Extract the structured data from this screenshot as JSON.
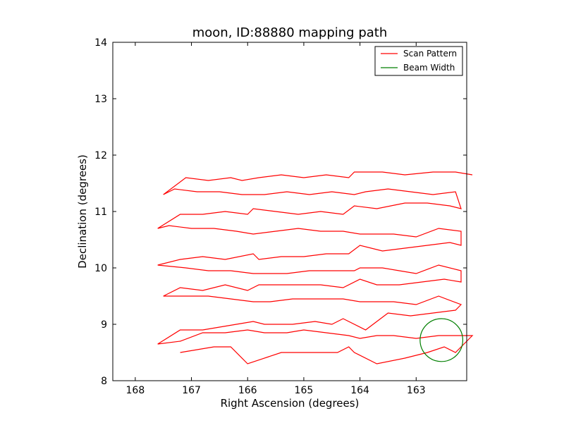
{
  "chart_data": {
    "type": "line",
    "title": "moon, ID:88880 mapping path",
    "xlabel": "Right Ascension (degrees)",
    "ylabel": "Declination (degrees)",
    "xlim": [
      168.4,
      162.1
    ],
    "ylim": [
      8,
      14
    ],
    "x_inverted": true,
    "xticks": [
      168,
      167,
      166,
      165,
      164,
      163
    ],
    "yticks": [
      8,
      9,
      10,
      11,
      12,
      13,
      14
    ],
    "grid": false,
    "legend_location": "top-right",
    "series": [
      {
        "name": "Scan Pattern",
        "color": "#ff0000",
        "x": [
          167.2,
          166.6,
          166.3,
          166.0,
          165.4,
          164.9,
          164.4,
          164.2,
          164.1,
          163.7,
          163.2,
          162.8,
          162.5,
          162.3,
          162.0,
          162.6,
          163.0,
          163.4,
          163.7,
          164.0,
          164.2,
          164.6,
          165.0,
          165.3,
          165.7,
          166.0,
          166.4,
          166.8,
          167.2,
          167.6,
          167.2,
          166.8,
          166.5,
          166.2,
          165.9,
          165.7,
          165.2,
          164.8,
          164.5,
          164.3,
          163.9,
          163.5,
          163.1,
          162.7,
          162.3,
          162.2,
          162.6,
          163.0,
          163.4,
          163.6,
          164.0,
          164.3,
          164.6,
          164.9,
          165.2,
          165.6,
          165.9,
          166.3,
          166.7,
          167.1,
          167.5,
          167.2,
          166.8,
          166.4,
          166.0,
          165.8,
          165.5,
          165.1,
          164.7,
          164.3,
          164.0,
          163.7,
          163.3,
          162.9,
          162.5,
          162.2,
          162.2,
          162.6,
          163.0,
          163.3,
          163.6,
          164.0,
          164.1,
          164.5,
          164.9,
          165.3,
          165.7,
          165.9,
          166.3,
          166.7,
          167.1,
          167.6,
          167.2,
          166.8,
          166.4,
          165.9,
          165.8,
          165.4,
          165.0,
          164.6,
          164.2,
          164.0,
          163.6,
          163.2,
          162.8,
          162.4,
          162.2,
          162.2,
          162.6,
          163.0,
          163.4,
          163.8,
          164.0,
          164.3,
          164.7,
          165.1,
          165.5,
          165.9,
          166.2,
          166.6,
          167.0,
          167.4,
          167.6,
          167.2,
          166.8,
          166.4,
          166.0,
          165.9,
          165.5,
          165.1,
          164.7,
          164.3,
          164.1,
          163.7,
          163.2,
          162.8,
          162.4,
          162.2,
          162.3,
          162.7,
          163.1,
          163.5,
          163.9,
          164.1,
          164.5,
          164.9,
          165.3,
          165.7,
          166.1,
          166.5,
          166.9,
          167.3,
          167.5,
          167.1,
          166.7,
          166.3,
          166.1,
          165.8,
          165.4,
          165.0,
          164.6,
          164.2,
          164.1,
          163.6,
          163.2,
          162.7,
          162.3,
          162.0
        ],
        "y": [
          8.5,
          8.6,
          8.6,
          8.3,
          8.5,
          8.5,
          8.5,
          8.6,
          8.5,
          8.3,
          8.4,
          8.5,
          8.6,
          8.5,
          8.8,
          8.8,
          8.75,
          8.8,
          8.8,
          8.75,
          8.8,
          8.85,
          8.9,
          8.85,
          8.85,
          8.9,
          8.85,
          8.85,
          8.7,
          8.65,
          8.9,
          8.9,
          8.95,
          9.0,
          9.05,
          9.0,
          9.0,
          9.05,
          9.0,
          9.1,
          8.9,
          9.2,
          9.15,
          9.2,
          9.25,
          9.35,
          9.5,
          9.35,
          9.4,
          9.4,
          9.4,
          9.45,
          9.45,
          9.45,
          9.45,
          9.4,
          9.4,
          9.45,
          9.5,
          9.5,
          9.5,
          9.65,
          9.6,
          9.7,
          9.6,
          9.7,
          9.7,
          9.7,
          9.7,
          9.65,
          9.8,
          9.7,
          9.7,
          9.75,
          9.8,
          9.75,
          9.95,
          10.05,
          9.9,
          9.95,
          10.0,
          10.0,
          9.95,
          9.95,
          9.95,
          9.9,
          9.9,
          9.9,
          9.95,
          9.95,
          10.0,
          10.05,
          10.15,
          10.2,
          10.15,
          10.25,
          10.15,
          10.2,
          10.2,
          10.25,
          10.25,
          10.4,
          10.3,
          10.35,
          10.4,
          10.45,
          10.4,
          10.65,
          10.7,
          10.55,
          10.6,
          10.6,
          10.6,
          10.65,
          10.65,
          10.7,
          10.65,
          10.6,
          10.65,
          10.7,
          10.7,
          10.75,
          10.7,
          10.95,
          10.95,
          11.0,
          10.95,
          11.05,
          11.0,
          10.95,
          11.0,
          10.95,
          11.1,
          11.05,
          11.15,
          11.15,
          11.1,
          11.05,
          11.35,
          11.3,
          11.35,
          11.4,
          11.35,
          11.3,
          11.35,
          11.3,
          11.35,
          11.3,
          11.3,
          11.35,
          11.35,
          11.4,
          11.3,
          11.6,
          11.55,
          11.6,
          11.55,
          11.6,
          11.65,
          11.6,
          11.65,
          11.6,
          11.7,
          11.7,
          11.65,
          11.7,
          11.7,
          11.65
        ]
      },
      {
        "name": "Beam Width",
        "color": "#007f00",
        "center": [
          162.55,
          8.72
        ],
        "radius": 0.38
      }
    ]
  }
}
